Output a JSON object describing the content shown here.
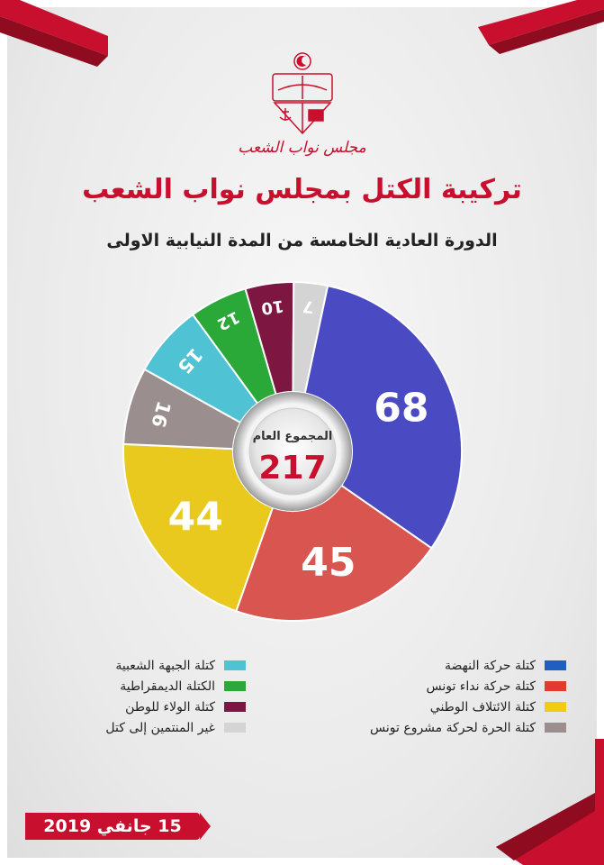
{
  "header": {
    "org_name": "مجلس نواب الشعب",
    "title": "تركيبة الكتل بمجلس نواب الشعب",
    "subtitle": "الدورة العادية الخامسة من المدة النيابية الاولى"
  },
  "center": {
    "label": "المجموع العام",
    "total": "217"
  },
  "date": "15 جانفي 2019",
  "colors": {
    "accent": "#c8102e"
  },
  "chart_data": {
    "type": "pie",
    "title": "تركيبة الكتل بمجلس نواب الشعب",
    "total": 217,
    "slices": [
      {
        "name": "كتلة حركة النهضة",
        "value": 68,
        "color": "#4a4bc2",
        "legend_color": "#1f5fbf"
      },
      {
        "name": "كتلة حركة نداء تونس",
        "value": 45,
        "color": "#d95550",
        "legend_color": "#e23a2f"
      },
      {
        "name": "كتلة الائتلاف الوطني",
        "value": 44,
        "color": "#e9c91e",
        "legend_color": "#f0cc12"
      },
      {
        "name": "كتلة الحرة لحركة مشروع تونس",
        "value": 16,
        "color": "#9a8f8e",
        "legend_color": "#9a8f8e"
      },
      {
        "name": "كتلة الجبهة الشعبية",
        "value": 15,
        "color": "#4fc2d3",
        "legend_color": "#4fc2d3"
      },
      {
        "name": "الكتلة الديمقراطية",
        "value": 12,
        "color": "#2aa838",
        "legend_color": "#2aa838"
      },
      {
        "name": "كتلة الولاء للوطن",
        "value": 10,
        "color": "#7d1640",
        "legend_color": "#7d1640"
      },
      {
        "name": "غير المنتمين إلى كتل",
        "value": 7,
        "color": "#d4d4d4",
        "legend_color": "#d4d4d4"
      }
    ],
    "legend": {
      "right_column": [
        0,
        1,
        2,
        3
      ],
      "left_column": [
        4,
        5,
        6,
        7
      ]
    }
  }
}
